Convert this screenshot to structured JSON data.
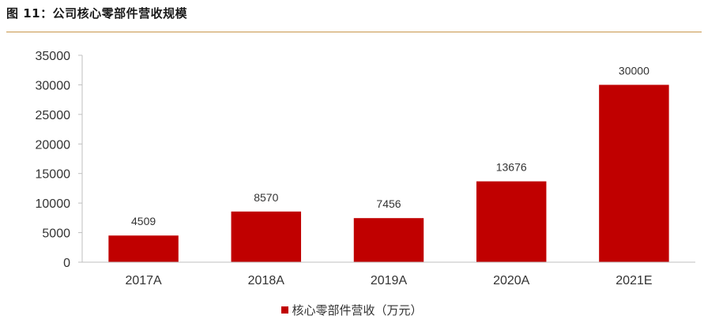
{
  "figure": {
    "title": "图 11：公司核心零部件营收规模"
  },
  "chart_data": {
    "type": "bar",
    "title": "图 11：公司核心零部件营收规模",
    "categories": [
      "2017A",
      "2018A",
      "2019A",
      "2020A",
      "2021E"
    ],
    "series": [
      {
        "name": "核心零部件营收（万元）",
        "values": [
          4509,
          8570,
          7456,
          13676,
          30000
        ],
        "color": "#c00000"
      }
    ],
    "ylim": [
      0,
      35000
    ],
    "yticks": [
      0,
      5000,
      10000,
      15000,
      20000,
      25000,
      30000,
      35000
    ],
    "xlabel": "",
    "ylabel": "",
    "grid": false,
    "legend_position": "bottom"
  }
}
